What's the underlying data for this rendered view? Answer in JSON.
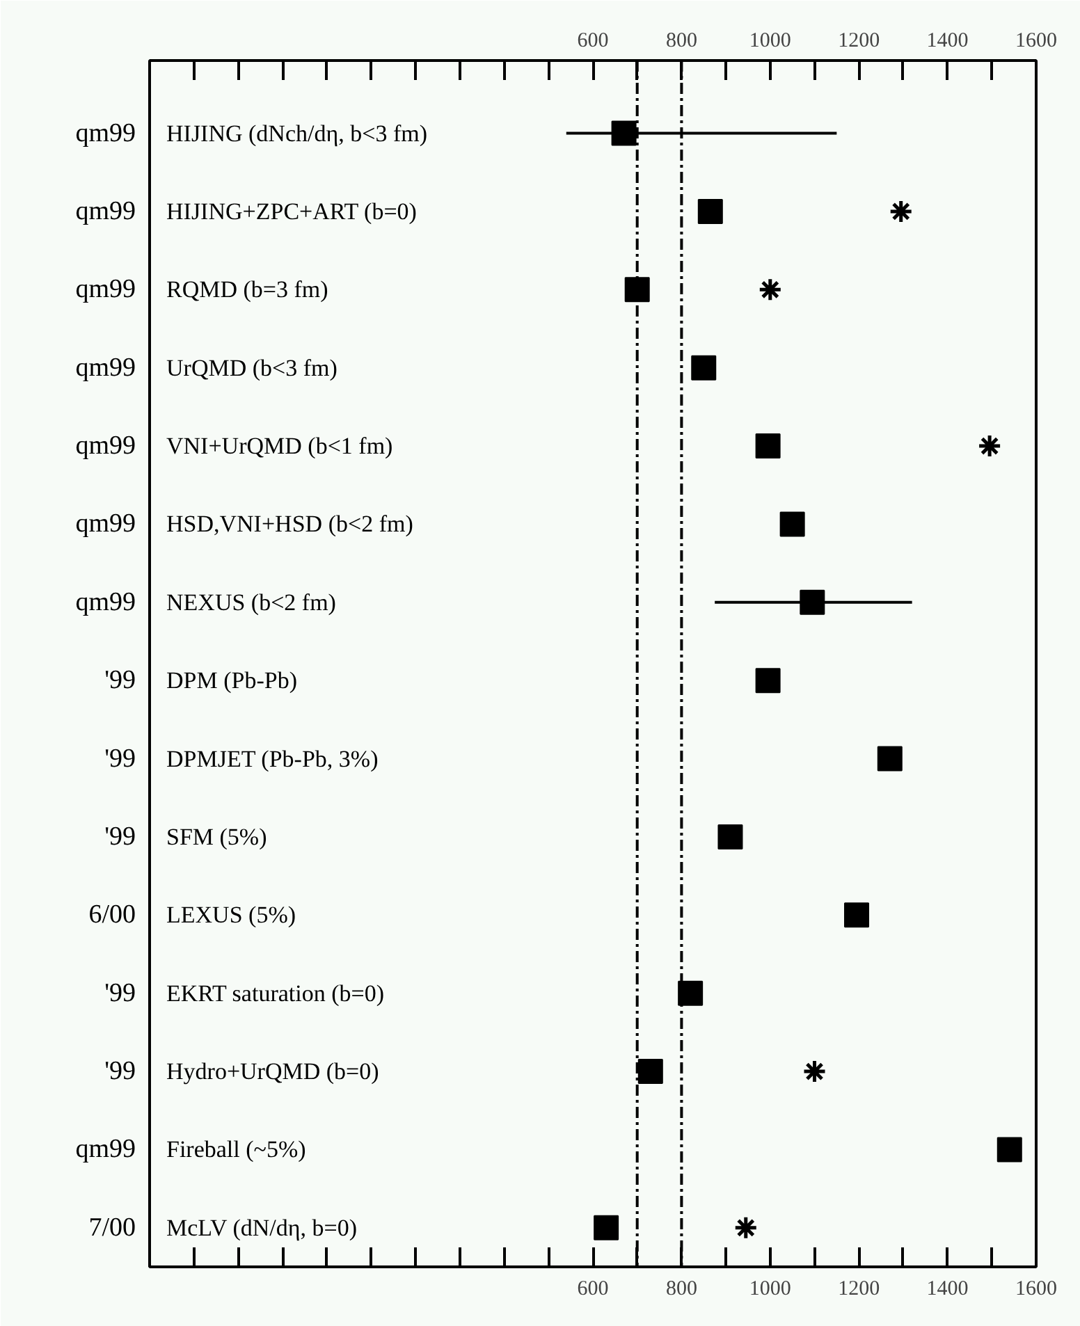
{
  "chart_data": {
    "type": "scatter",
    "orientation": "horizontal",
    "categories": [
      "HIJING (dNch/dη, b<3 fm)",
      "HIJING+ZPC+ART (b=0)",
      "RQMD (b=3 fm)",
      "UrQMD (b<3 fm)",
      "VNI+UrQMD (b<1 fm)",
      "HSD,VNI+HSD (b<2 fm)",
      "NEXUS (b<2 fm)",
      "DPM (Pb-Pb)",
      "DPMJET (Pb-Pb, 3%)",
      "SFM (5%)",
      "LEXUS (5%)",
      "EKRT saturation (b=0)",
      "Hydro+UrQMD (b=0)",
      "Fireball (~5%)",
      "McLV (dN/dη, b=0)"
    ],
    "series": [
      {
        "color": "#000000",
        "marker": "square",
        "values": [
          670,
          865,
          700,
          850,
          995,
          1050,
          1095,
          995,
          1270,
          910,
          1195,
          820,
          730,
          1540,
          630
        ],
        "errors": [
          [
            540,
            1150
          ],
          null,
          null,
          null,
          null,
          null,
          [
            875,
            1320
          ],
          null,
          null,
          null,
          null,
          null,
          null,
          null,
          null
        ]
      },
      {
        "color": "#000000",
        "marker": "cross",
        "values": [
          null,
          1295,
          1000,
          null,
          1495,
          null,
          null,
          null,
          null,
          null,
          null,
          null,
          1100,
          null,
          945
        ]
      }
    ],
    "xlim": [
      -400,
      1600
    ],
    "xticks": [
      {
        "value": -300,
        "label": null
      },
      {
        "value": -200,
        "label": null
      },
      {
        "value": -100,
        "label": null
      },
      {
        "value": 0,
        "label": null
      },
      {
        "value": 100,
        "label": null
      },
      {
        "value": 200,
        "label": null
      },
      {
        "value": 300,
        "label": null
      },
      {
        "value": 400,
        "label": null
      },
      {
        "value": 500,
        "label": null
      },
      600,
      {
        "value": 700,
        "label": null
      },
      800,
      {
        "value": 900,
        "label": null
      },
      1000,
      {
        "value": 1100,
        "label": null
      },
      1200,
      {
        "value": 1300,
        "label": null
      },
      1400,
      {
        "value": 1500,
        "label": null
      },
      1600
    ],
    "x2lim": [
      -400,
      1600
    ],
    "x2ticks": [
      {
        "value": -300,
        "label": null
      },
      {
        "value": -200,
        "label": null
      },
      {
        "value": -100,
        "label": null
      },
      {
        "value": 0,
        "label": null
      },
      {
        "value": 100,
        "label": null
      },
      {
        "value": 200,
        "label": null
      },
      {
        "value": 300,
        "label": null
      },
      {
        "value": 400,
        "label": null
      },
      {
        "value": 500,
        "label": null
      },
      600,
      {
        "value": 700,
        "label": null
      },
      800,
      {
        "value": 900,
        "label": null
      },
      1000,
      {
        "value": 1100,
        "label": null
      },
      1200,
      {
        "value": 1300,
        "label": null
      },
      1400,
      {
        "value": 1500,
        "label": null
      },
      1600
    ],
    "ref_lines": [
      {
        "axis": "x",
        "value": 700,
        "line_style": "dashdot",
        "color": "#000000"
      },
      {
        "axis": "x",
        "value": 800,
        "line_style": "dashdot",
        "color": "#000000"
      }
    ],
    "annotations": [
      "qm99",
      "qm99",
      "qm99",
      "qm99",
      "qm99",
      "qm99",
      "qm99",
      "'99",
      "'99",
      "'99",
      "6/00",
      "'99",
      "'99",
      "qm99",
      "7/00"
    ]
  }
}
